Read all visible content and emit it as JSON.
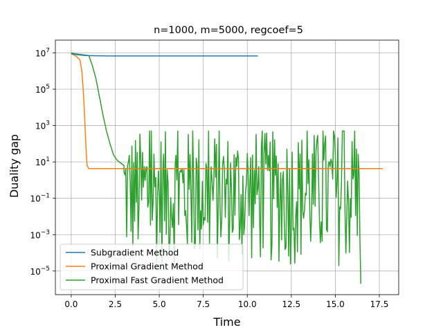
{
  "chart_data": {
    "type": "line",
    "title": "n=1000, m=5000, regcoef=5",
    "xlabel": "Time",
    "ylabel": "Duality gap",
    "yscale": "log",
    "xlim": [
      -0.9,
      18.6
    ],
    "ylim_log10": [
      -6.3,
      7.7
    ],
    "x_ticks": [
      0,
      2.5,
      5,
      7.5,
      10,
      12.5,
      15,
      17.5
    ],
    "x_tick_labels": [
      "0.0",
      "2.5",
      "5.0",
      "7.5",
      "10.0",
      "12.5",
      "15.0",
      "17.5"
    ],
    "y_ticks_log10": [
      7,
      5,
      3,
      1,
      -1,
      -3,
      -5
    ],
    "grid": true,
    "legend_position": "lower-left",
    "colors": {
      "series1": "#1f77b4",
      "series2": "#ff7f0e",
      "series3": "#2ca02c"
    },
    "series": [
      {
        "name": "Subgradient Method",
        "x": [
          0,
          0.05,
          0.3,
          0.8,
          2,
          5,
          8,
          10.6
        ],
        "y_log10": [
          6.95,
          6.95,
          6.9,
          6.85,
          6.83,
          6.83,
          6.83,
          6.83
        ]
      },
      {
        "name": "Proximal Gradient Method",
        "x": [
          0,
          0.1,
          0.3,
          0.5,
          0.6,
          0.68,
          0.75,
          0.8,
          0.85,
          0.9,
          1.0,
          1.2,
          5,
          10,
          15,
          17.7
        ],
        "y_log10": [
          6.95,
          6.9,
          6.8,
          6.6,
          6.0,
          5.0,
          3.7,
          2.6,
          1.6,
          0.8,
          0.63,
          0.63,
          0.63,
          0.63,
          0.63,
          0.63
        ]
      },
      {
        "name": "Proximal Fast Gradient Method",
        "x": [
          0,
          0.2,
          0.6,
          1.0,
          1.2,
          1.4,
          1.6,
          1.8,
          2.0,
          2.2,
          2.4,
          2.6,
          3.0
        ],
        "y_log10": [
          7.0,
          6.95,
          6.9,
          6.85,
          6.3,
          5.6,
          4.6,
          3.6,
          2.7,
          2.0,
          1.4,
          1.1,
          0.8
        ],
        "noise": {
          "x_start": 3.0,
          "x_end": 16.45,
          "y_log10_min": -4.8,
          "y_log10_max": 2.7,
          "step": 0.05,
          "final_x": 16.45,
          "final_y_log10": -5.7
        }
      }
    ]
  }
}
